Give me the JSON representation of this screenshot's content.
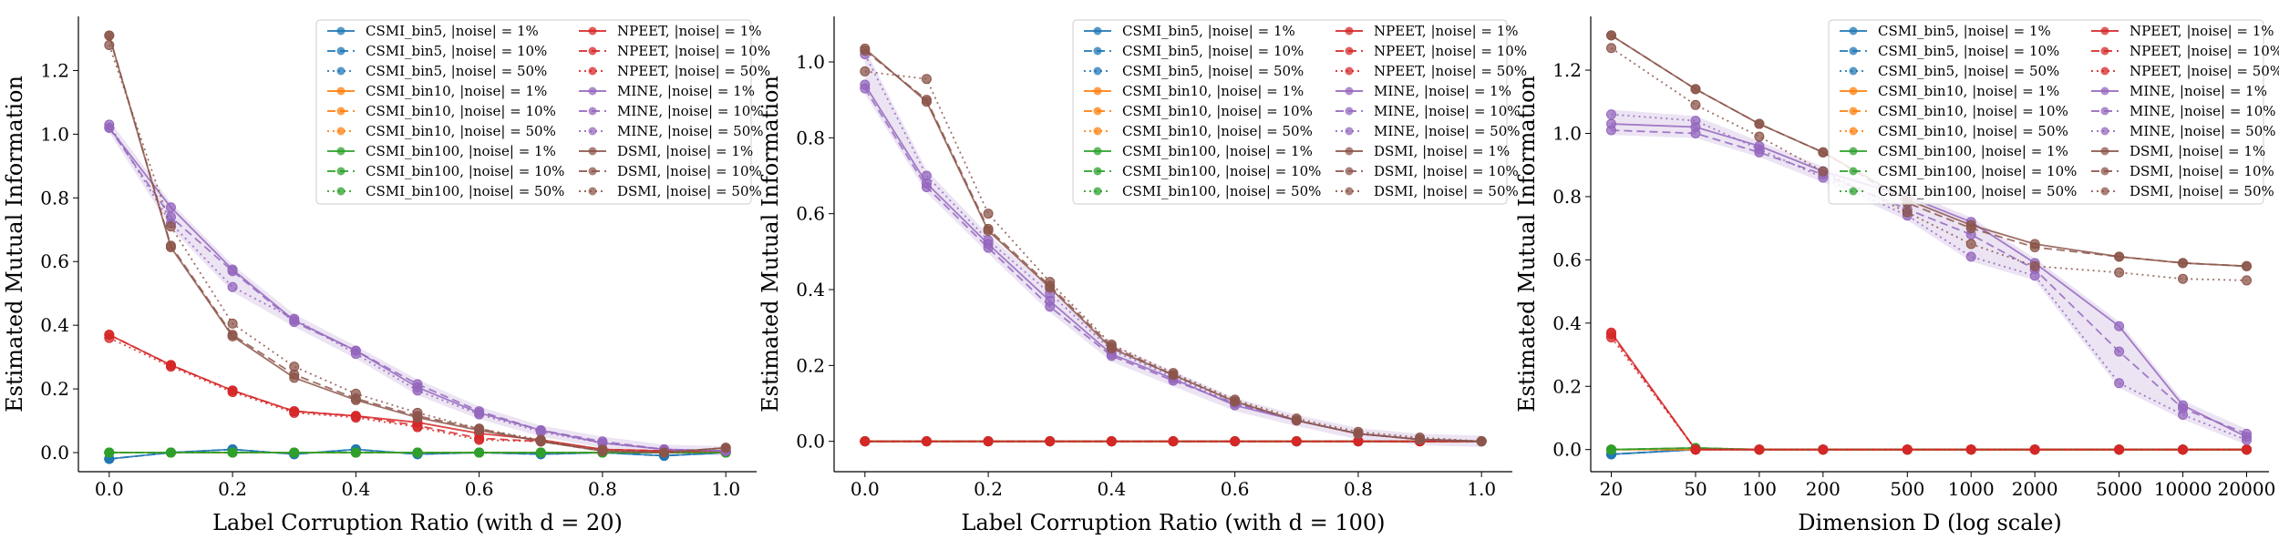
{
  "colors": {
    "CSMI_bin5": "#1f77b4",
    "CSMI_bin10": "#ff7f0e",
    "CSMI_bin100": "#2ca02c",
    "NPEET": "#d62728",
    "MINE": "#9467bd",
    "DSMI": "#8c564b"
  },
  "legend_entries": [
    "CSMI_bin5, |noise| = 1%",
    "CSMI_bin5, |noise| = 10%",
    "CSMI_bin5, |noise| = 50%",
    "CSMI_bin10, |noise| = 1%",
    "CSMI_bin10, |noise| = 10%",
    "CSMI_bin10, |noise| = 50%",
    "CSMI_bin100, |noise| = 1%",
    "CSMI_bin100, |noise| = 10%",
    "CSMI_bin100, |noise| = 50%",
    "NPEET, |noise| = 1%",
    "NPEET, |noise| = 10%",
    "NPEET, |noise| = 50%",
    "MINE, |noise| = 1%",
    "MINE, |noise| = 10%",
    "MINE, |noise| = 50%",
    "DSMI, |noise| = 1%",
    "DSMI, |noise| = 10%",
    "DSMI, |noise| = 50%"
  ],
  "chart_data": [
    {
      "type": "line",
      "xlabel": "Label Corruption Ratio (with d = 20)",
      "ylabel": "Estimated Mutual Information",
      "xlim": [
        -0.05,
        1.05
      ],
      "ylim": [
        -0.06,
        1.37
      ],
      "x_ticks": [
        0.0,
        0.2,
        0.4,
        0.6,
        0.8,
        1.0
      ],
      "x_tick_labels": [
        "0.0",
        "0.2",
        "0.4",
        "0.6",
        "0.8",
        "1.0"
      ],
      "y_ticks": [
        0.0,
        0.2,
        0.4,
        0.6,
        0.8,
        1.0,
        1.2
      ],
      "y_tick_labels": [
        "0.0",
        "0.2",
        "0.4",
        "0.6",
        "0.8",
        "1.0",
        "1.2"
      ],
      "legend_position": "top-right",
      "x": [
        0.0,
        0.1,
        0.2,
        0.3,
        0.4,
        0.5,
        0.6,
        0.7,
        0.8,
        0.9,
        1.0
      ],
      "series": [
        {
          "name": "CSMI_bin5, |noise| = 1%",
          "values": [
            -0.02,
            0.0,
            0.01,
            -0.005,
            0.01,
            -0.005,
            0.0,
            -0.005,
            0.0,
            -0.01,
            0.0
          ]
        },
        {
          "name": "CSMI_bin5, |noise| = 10%",
          "values": [
            -0.02,
            0.0,
            0.01,
            -0.005,
            0.01,
            -0.005,
            0.0,
            -0.005,
            0.0,
            -0.01,
            0.0
          ]
        },
        {
          "name": "CSMI_bin5, |noise| = 50%",
          "values": [
            -0.02,
            0.0,
            0.01,
            -0.005,
            0.01,
            -0.005,
            0.0,
            -0.005,
            0.0,
            -0.01,
            0.0
          ]
        },
        {
          "name": "CSMI_bin10, |noise| = 1%",
          "values": [
            0.0,
            0.0,
            0.0,
            0.0,
            0.0,
            0.0,
            0.0,
            0.0,
            0.0,
            0.0,
            0.0
          ]
        },
        {
          "name": "CSMI_bin10, |noise| = 10%",
          "values": [
            0.0,
            0.0,
            0.0,
            0.0,
            0.0,
            0.0,
            0.0,
            0.0,
            0.0,
            0.0,
            0.0
          ]
        },
        {
          "name": "CSMI_bin10, |noise| = 50%",
          "values": [
            0.0,
            0.0,
            0.0,
            0.0,
            0.0,
            0.0,
            0.0,
            0.0,
            0.0,
            0.0,
            0.0
          ]
        },
        {
          "name": "CSMI_bin100, |noise| = 1%",
          "values": [
            0.0,
            0.0,
            0.0,
            0.0,
            0.0,
            0.0,
            0.0,
            0.0,
            0.0,
            0.0,
            0.0
          ]
        },
        {
          "name": "CSMI_bin100, |noise| = 10%",
          "values": [
            0.0,
            0.0,
            0.0,
            0.0,
            0.0,
            0.0,
            0.0,
            0.0,
            0.0,
            0.0,
            0.0
          ]
        },
        {
          "name": "CSMI_bin100, |noise| = 50%",
          "values": [
            0.0,
            0.0,
            0.0,
            0.0,
            0.0,
            0.0,
            0.0,
            0.0,
            0.0,
            0.0,
            0.0
          ]
        },
        {
          "name": "NPEET, |noise| = 1%",
          "values": [
            0.37,
            0.275,
            0.195,
            0.13,
            0.115,
            0.095,
            0.06,
            0.04,
            0.01,
            0.005,
            0.005
          ]
        },
        {
          "name": "NPEET, |noise| = 10%",
          "values": [
            0.37,
            0.275,
            0.195,
            0.13,
            0.115,
            0.085,
            0.045,
            0.035,
            0.01,
            0.005,
            0.005
          ]
        },
        {
          "name": "NPEET, |noise| = 50%",
          "values": [
            0.36,
            0.27,
            0.19,
            0.125,
            0.11,
            0.08,
            0.04,
            0.035,
            0.005,
            0.0,
            0.005
          ]
        },
        {
          "name": "MINE, |noise| = 1%",
          "values": [
            1.02,
            0.77,
            0.575,
            0.415,
            0.32,
            0.205,
            0.125,
            0.07,
            0.03,
            0.01,
            0.005
          ]
        },
        {
          "name": "MINE, |noise| = 10%",
          "values": [
            1.02,
            0.74,
            0.57,
            0.41,
            0.32,
            0.215,
            0.13,
            0.07,
            0.035,
            0.01,
            0.005
          ]
        },
        {
          "name": "MINE, |noise| = 50%",
          "values": [
            1.03,
            0.72,
            0.52,
            0.42,
            0.31,
            0.195,
            0.12,
            0.065,
            0.03,
            0.01,
            0.005
          ]
        },
        {
          "name": "DSMI, |noise| = 1%",
          "values": [
            1.31,
            0.645,
            0.365,
            0.235,
            0.165,
            0.11,
            0.07,
            0.035,
            0.005,
            0.0,
            0.015
          ]
        },
        {
          "name": "DSMI, |noise| = 10%",
          "values": [
            1.31,
            0.65,
            0.37,
            0.245,
            0.17,
            0.115,
            0.075,
            0.035,
            0.005,
            0.0,
            0.015
          ]
        },
        {
          "name": "DSMI, |noise| = 50%",
          "values": [
            1.28,
            0.71,
            0.405,
            0.27,
            0.185,
            0.125,
            0.075,
            0.04,
            0.01,
            0.0,
            0.015
          ]
        }
      ]
    },
    {
      "type": "line",
      "xlabel": "Label Corruption Ratio (with d = 100)",
      "ylabel": "Estimated Mutual Information",
      "xlim": [
        -0.05,
        1.05
      ],
      "ylim": [
        -0.08,
        1.12
      ],
      "x_ticks": [
        0.0,
        0.2,
        0.4,
        0.6,
        0.8,
        1.0
      ],
      "x_tick_labels": [
        "0.0",
        "0.2",
        "0.4",
        "0.6",
        "0.8",
        "1.0"
      ],
      "y_ticks": [
        0.0,
        0.2,
        0.4,
        0.6,
        0.8,
        1.0
      ],
      "y_tick_labels": [
        "0.0",
        "0.2",
        "0.4",
        "0.6",
        "0.8",
        "1.0"
      ],
      "legend_position": "top-right",
      "x": [
        0.0,
        0.1,
        0.2,
        0.3,
        0.4,
        0.5,
        0.6,
        0.7,
        0.8,
        0.9,
        1.0
      ],
      "series": [
        {
          "name": "CSMI_bin5, |noise| = 1%",
          "values": [
            0.0,
            0.0,
            0.0,
            0.0,
            0.0,
            0.0,
            0.0,
            0.0,
            0.0,
            0.0,
            0.0
          ]
        },
        {
          "name": "CSMI_bin5, |noise| = 10%",
          "values": [
            0.0,
            0.0,
            0.0,
            0.0,
            0.0,
            0.0,
            0.0,
            0.0,
            0.0,
            0.0,
            0.0
          ]
        },
        {
          "name": "CSMI_bin5, |noise| = 50%",
          "values": [
            0.0,
            0.0,
            0.0,
            0.0,
            0.0,
            0.0,
            0.0,
            0.0,
            0.0,
            0.0,
            0.0
          ]
        },
        {
          "name": "CSMI_bin10, |noise| = 1%",
          "values": [
            0.0,
            0.0,
            0.0,
            0.0,
            0.0,
            0.0,
            0.0,
            0.0,
            0.0,
            0.0,
            0.0
          ]
        },
        {
          "name": "CSMI_bin10, |noise| = 10%",
          "values": [
            0.0,
            0.0,
            0.0,
            0.0,
            0.0,
            0.0,
            0.0,
            0.0,
            0.0,
            0.0,
            0.0
          ]
        },
        {
          "name": "CSMI_bin10, |noise| = 50%",
          "values": [
            0.0,
            0.0,
            0.0,
            0.0,
            0.0,
            0.0,
            0.0,
            0.0,
            0.0,
            0.0,
            0.0
          ]
        },
        {
          "name": "CSMI_bin100, |noise| = 1%",
          "values": [
            0.0,
            0.0,
            0.0,
            0.0,
            0.0,
            0.0,
            0.0,
            0.0,
            0.0,
            0.0,
            0.0
          ]
        },
        {
          "name": "CSMI_bin100, |noise| = 10%",
          "values": [
            0.0,
            0.0,
            0.0,
            0.0,
            0.0,
            0.0,
            0.0,
            0.0,
            0.0,
            0.0,
            0.0
          ]
        },
        {
          "name": "CSMI_bin100, |noise| = 50%",
          "values": [
            0.0,
            0.0,
            0.0,
            0.0,
            0.0,
            0.0,
            0.0,
            0.0,
            0.0,
            0.0,
            0.0
          ]
        },
        {
          "name": "NPEET, |noise| = 1%",
          "values": [
            0.0,
            0.0,
            0.0,
            0.0,
            0.0,
            0.0,
            0.0,
            0.0,
            0.0,
            0.0,
            0.0
          ]
        },
        {
          "name": "NPEET, |noise| = 10%",
          "values": [
            0.0,
            0.0,
            0.0,
            0.0,
            0.0,
            0.0,
            0.0,
            0.0,
            0.0,
            0.0,
            0.0
          ]
        },
        {
          "name": "NPEET, |noise| = 50%",
          "values": [
            0.0,
            0.0,
            0.0,
            0.0,
            0.0,
            0.0,
            0.0,
            0.0,
            0.0,
            0.0,
            0.0
          ]
        },
        {
          "name": "MINE, |noise| = 1%",
          "values": [
            0.94,
            0.68,
            0.52,
            0.37,
            0.23,
            0.165,
            0.095,
            0.055,
            0.02,
            0.005,
            0.0
          ]
        },
        {
          "name": "MINE, |noise| = 10%",
          "values": [
            0.93,
            0.67,
            0.51,
            0.355,
            0.225,
            0.16,
            0.1,
            0.055,
            0.02,
            0.005,
            0.0
          ]
        },
        {
          "name": "MINE, |noise| = 50%",
          "values": [
            1.02,
            0.7,
            0.53,
            0.39,
            0.24,
            0.17,
            0.1,
            0.055,
            0.02,
            0.005,
            0.0
          ]
        },
        {
          "name": "DSMI, |noise| = 1%",
          "values": [
            1.035,
            0.895,
            0.555,
            0.405,
            0.245,
            0.175,
            0.105,
            0.055,
            0.02,
            0.005,
            0.0
          ]
        },
        {
          "name": "DSMI, |noise| = 10%",
          "values": [
            1.03,
            0.9,
            0.56,
            0.41,
            0.25,
            0.175,
            0.105,
            0.055,
            0.02,
            0.005,
            0.0
          ]
        },
        {
          "name": "DSMI, |noise| = 50%",
          "values": [
            0.975,
            0.955,
            0.6,
            0.42,
            0.255,
            0.18,
            0.11,
            0.06,
            0.025,
            0.01,
            0.0
          ]
        }
      ]
    },
    {
      "type": "line",
      "xlabel": "Dimension D (log scale)",
      "ylabel": "Estimated Mutual Information",
      "x_scale": "log",
      "xlim": [
        16,
        25500
      ],
      "ylim": [
        -0.07,
        1.37
      ],
      "x_ticks": [
        20,
        50,
        100,
        200,
        500,
        1000,
        2000,
        5000,
        10000,
        20000
      ],
      "x_tick_labels": [
        "20",
        "50",
        "100",
        "200",
        "500",
        "1000",
        "2000",
        "5000",
        "10000",
        "20000"
      ],
      "y_ticks": [
        0.0,
        0.2,
        0.4,
        0.6,
        0.8,
        1.0,
        1.2
      ],
      "y_tick_labels": [
        "0.0",
        "0.2",
        "0.4",
        "0.6",
        "0.8",
        "1.0",
        "1.2"
      ],
      "legend_position": "top-right",
      "x": [
        20,
        50,
        100,
        200,
        500,
        1000,
        2000,
        5000,
        10000,
        20000
      ],
      "series": [
        {
          "name": "CSMI_bin5, |noise| = 1%",
          "values": [
            -0.015,
            0.0,
            0.0,
            0.0,
            0.0,
            0.0,
            0.0,
            0.0,
            0.0,
            0.0
          ]
        },
        {
          "name": "CSMI_bin5, |noise| = 10%",
          "values": [
            -0.015,
            0.0,
            0.0,
            0.0,
            0.0,
            0.0,
            0.0,
            0.0,
            0.0,
            0.0
          ]
        },
        {
          "name": "CSMI_bin5, |noise| = 50%",
          "values": [
            -0.015,
            0.0,
            0.0,
            0.0,
            0.0,
            0.0,
            0.0,
            0.0,
            0.0,
            0.0
          ]
        },
        {
          "name": "CSMI_bin10, |noise| = 1%",
          "values": [
            0.0,
            0.0,
            0.0,
            0.0,
            0.0,
            0.0,
            0.0,
            0.0,
            0.0,
            0.0
          ]
        },
        {
          "name": "CSMI_bin10, |noise| = 10%",
          "values": [
            0.0,
            0.0,
            0.0,
            0.0,
            0.0,
            0.0,
            0.0,
            0.0,
            0.0,
            0.0
          ]
        },
        {
          "name": "CSMI_bin10, |noise| = 50%",
          "values": [
            0.0,
            0.0,
            0.0,
            0.0,
            0.0,
            0.0,
            0.0,
            0.0,
            0.0,
            0.0
          ]
        },
        {
          "name": "CSMI_bin100, |noise| = 1%",
          "values": [
            0.0,
            0.005,
            0.0,
            0.0,
            0.0,
            0.0,
            0.0,
            0.0,
            0.0,
            0.0
          ]
        },
        {
          "name": "CSMI_bin100, |noise| = 10%",
          "values": [
            0.0,
            0.005,
            0.0,
            0.0,
            0.0,
            0.0,
            0.0,
            0.0,
            0.0,
            0.0
          ]
        },
        {
          "name": "CSMI_bin100, |noise| = 50%",
          "values": [
            0.0,
            0.005,
            0.0,
            0.0,
            0.0,
            0.0,
            0.0,
            0.0,
            0.0,
            0.0
          ]
        },
        {
          "name": "NPEET, |noise| = 1%",
          "values": [
            0.37,
            0.0,
            0.0,
            0.0,
            0.0,
            0.0,
            0.0,
            0.0,
            0.0,
            0.0
          ]
        },
        {
          "name": "NPEET, |noise| = 10%",
          "values": [
            0.365,
            0.0,
            0.0,
            0.0,
            0.0,
            0.0,
            0.0,
            0.0,
            0.0,
            0.0
          ]
        },
        {
          "name": "NPEET, |noise| = 50%",
          "values": [
            0.355,
            0.0,
            0.0,
            0.0,
            0.0,
            0.0,
            0.0,
            0.0,
            0.0,
            0.0
          ]
        },
        {
          "name": "MINE, |noise| = 1%",
          "values": [
            1.03,
            1.02,
            0.96,
            0.88,
            0.8,
            0.72,
            0.59,
            0.39,
            0.14,
            0.04
          ]
        },
        {
          "name": "MINE, |noise| = 10%",
          "values": [
            1.01,
            1.0,
            0.94,
            0.87,
            0.76,
            0.68,
            0.57,
            0.31,
            0.13,
            0.05
          ]
        },
        {
          "name": "MINE, |noise| = 50%",
          "values": [
            1.06,
            1.04,
            0.95,
            0.86,
            0.74,
            0.61,
            0.55,
            0.21,
            0.11,
            0.03
          ]
        },
        {
          "name": "DSMI, |noise| = 1%",
          "values": [
            1.31,
            1.14,
            1.03,
            0.94,
            0.79,
            0.71,
            0.65,
            0.61,
            0.59,
            0.58
          ]
        },
        {
          "name": "DSMI, |noise| = 10%",
          "values": [
            1.31,
            1.14,
            1.03,
            0.94,
            0.78,
            0.7,
            0.64,
            0.61,
            0.59,
            0.58
          ]
        },
        {
          "name": "DSMI, |noise| = 50%",
          "values": [
            1.27,
            1.09,
            0.99,
            0.88,
            0.75,
            0.65,
            0.58,
            0.56,
            0.54,
            0.535
          ]
        }
      ]
    }
  ]
}
